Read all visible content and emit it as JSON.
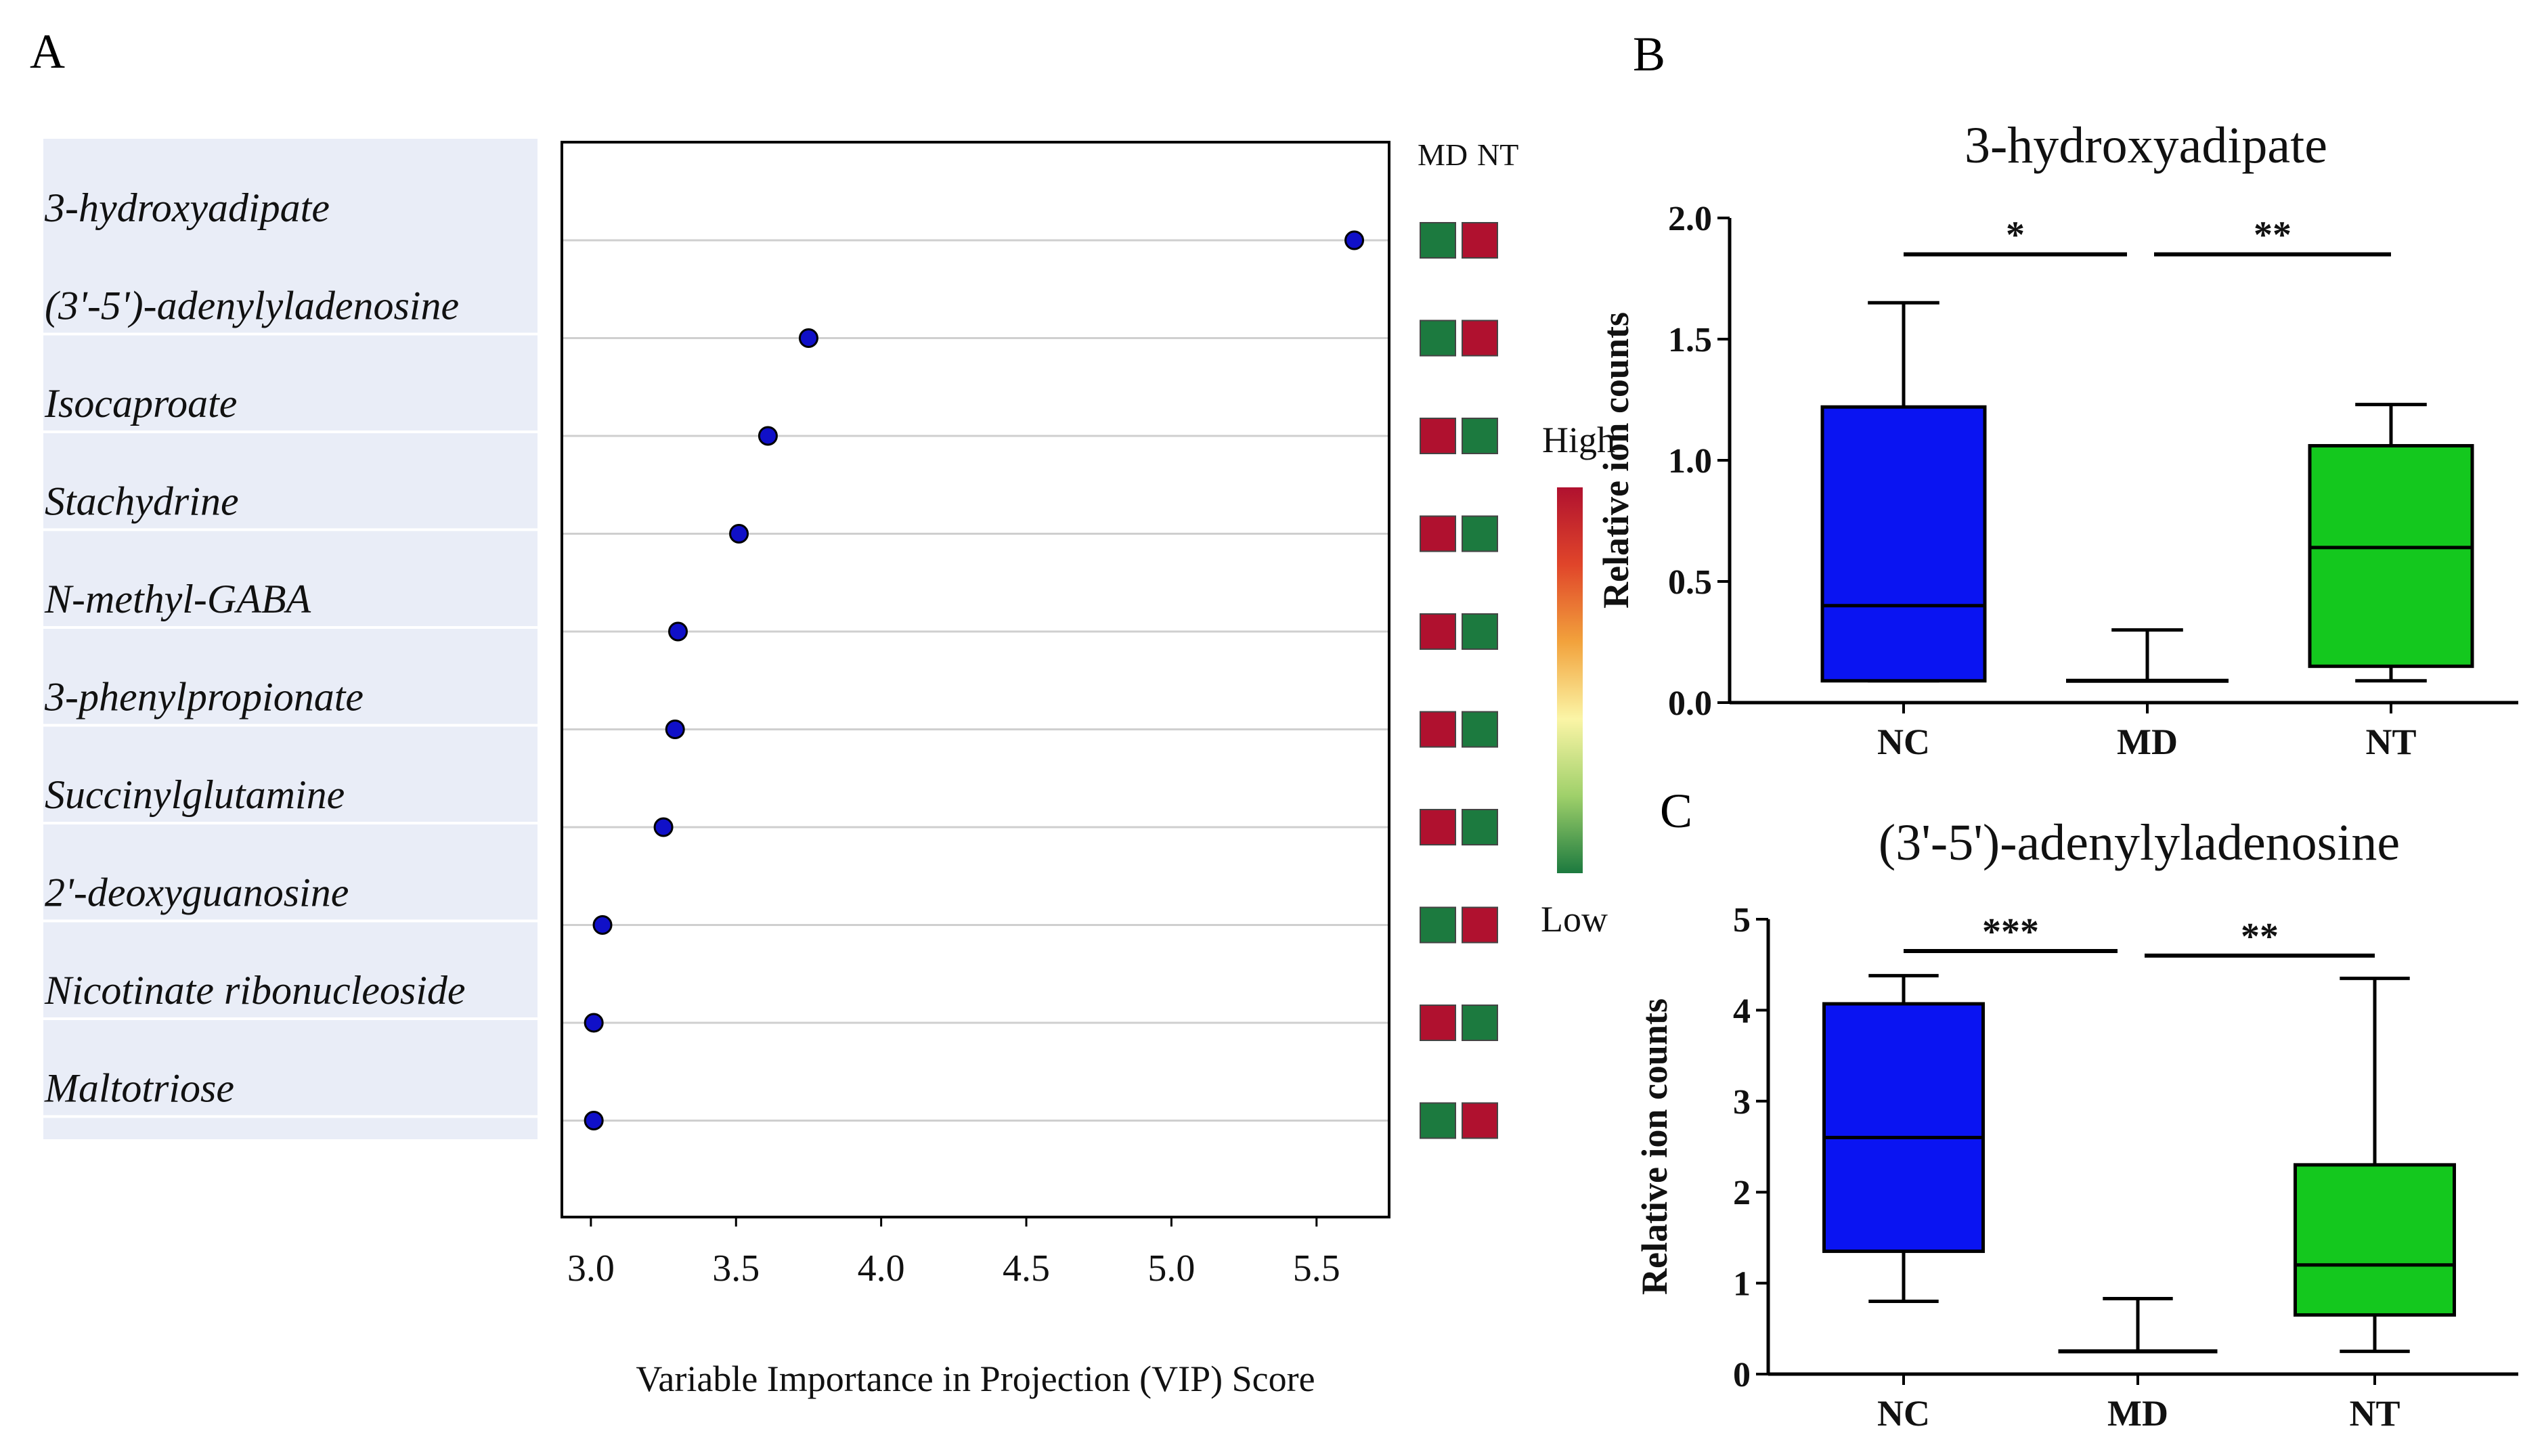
{
  "panel_labels": {
    "a": "A",
    "b": "B",
    "c": "C"
  },
  "colors": {
    "label_bg": "#e9edf7",
    "dot": "#1010c8",
    "heat_red": "#b0112f",
    "heat_green": "#1c7a3f",
    "nc": "#0a14f2",
    "md": "#ffffff",
    "nt": "#14c81e"
  },
  "heatmap": {
    "columns": [
      "MD",
      "NT"
    ],
    "legend_high": "High",
    "legend_low": "Low",
    "gradient": [
      "#b0112f",
      "#e0452a",
      "#f2a23c",
      "#fbf5a6",
      "#9fd06a",
      "#1c7a3f"
    ]
  },
  "chart_data": [
    {
      "type": "scatter",
      "panel": "A",
      "title": "",
      "xlabel": "Variable  Importance  in  Projection  (VIP)  Score",
      "ylabel": "",
      "xlim": [
        2.9,
        5.75
      ],
      "xticks": [
        "3.0",
        "3.5",
        "4.0",
        "4.5",
        "5.0",
        "5.5"
      ],
      "grid": "horizontal",
      "points": [
        {
          "label": "3-hydroxyadipate",
          "vip": 5.63,
          "md": "low",
          "nt": "high"
        },
        {
          "label": "(3'-5')-adenylyladenosine",
          "vip": 3.75,
          "md": "low",
          "nt": "high"
        },
        {
          "label": "Isocaproate",
          "vip": 3.61,
          "md": "high",
          "nt": "low"
        },
        {
          "label": "Stachydrine",
          "vip": 3.51,
          "md": "high",
          "nt": "low"
        },
        {
          "label": "N-methyl-GABA",
          "vip": 3.3,
          "md": "high",
          "nt": "low"
        },
        {
          "label": "3-phenylpropionate",
          "vip": 3.29,
          "md": "high",
          "nt": "low"
        },
        {
          "label": "Succinylglutamine",
          "vip": 3.25,
          "md": "high",
          "nt": "low"
        },
        {
          "label": "2'-deoxyguanosine",
          "vip": 3.04,
          "md": "low",
          "nt": "high"
        },
        {
          "label": "Nicotinate ribonucleoside",
          "vip": 3.01,
          "md": "high",
          "nt": "low"
        },
        {
          "label": "Maltotriose",
          "vip": 3.01,
          "md": "low",
          "nt": "high"
        }
      ]
    },
    {
      "type": "box",
      "panel": "B",
      "title": "3-hydroxyadipate",
      "xlabel": "",
      "ylabel": "Relative ion counts",
      "ylim": [
        0,
        2.0
      ],
      "yticks": [
        "0.0",
        "0.5",
        "1.0",
        "1.5",
        "2.0"
      ],
      "groups": [
        {
          "name": "NC",
          "min": 0.09,
          "q1": 0.09,
          "median": 0.4,
          "q3": 1.22,
          "max": 1.65
        },
        {
          "name": "MD",
          "min": 0.09,
          "q1": 0.09,
          "median": 0.09,
          "q3": 0.09,
          "max": 0.3
        },
        {
          "name": "NT",
          "min": 0.09,
          "q1": 0.15,
          "median": 0.64,
          "q3": 1.06,
          "max": 1.23
        }
      ],
      "significance": [
        {
          "from": 0,
          "to": 1,
          "label": "*",
          "y": 1.85
        },
        {
          "from": 1,
          "to": 2,
          "label": "**",
          "y": 1.85
        }
      ]
    },
    {
      "type": "box",
      "panel": "C",
      "title": "(3'-5')-adenylyladenosine",
      "xlabel": "",
      "ylabel": "Relative ion counts",
      "ylim": [
        0,
        5
      ],
      "yticks": [
        "0",
        "1",
        "2",
        "3",
        "4",
        "5"
      ],
      "groups": [
        {
          "name": "NC",
          "min": 0.8,
          "q1": 1.35,
          "median": 2.6,
          "q3": 4.07,
          "max": 4.38
        },
        {
          "name": "MD",
          "min": 0.25,
          "q1": 0.25,
          "median": 0.25,
          "q3": 0.25,
          "max": 0.83
        },
        {
          "name": "NT",
          "min": 0.25,
          "q1": 0.65,
          "median": 1.2,
          "q3": 2.3,
          "max": 4.35
        }
      ],
      "significance": [
        {
          "from": 0,
          "to": 1,
          "label": "***",
          "y": 4.65
        },
        {
          "from": 1,
          "to": 2,
          "label": "**",
          "y": 4.6
        }
      ]
    }
  ]
}
